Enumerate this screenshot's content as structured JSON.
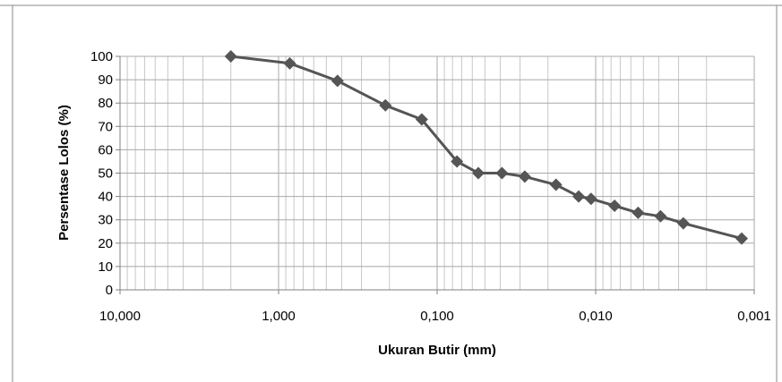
{
  "chart_data": {
    "type": "scatter",
    "title": "",
    "xlabel": "Ukuran Butir (mm)",
    "ylabel": "Persentase Lolos (%)",
    "x_scale": "log",
    "x_reversed": true,
    "xlim": [
      10,
      0.001
    ],
    "ylim": [
      0,
      100
    ],
    "grid": true,
    "legend": "none",
    "x_ticks": [
      {
        "value": 10,
        "label": "10,000"
      },
      {
        "value": 1,
        "label": "1,000"
      },
      {
        "value": 0.1,
        "label": "0,100"
      },
      {
        "value": 0.01,
        "label": "0,010"
      },
      {
        "value": 0.001,
        "label": "0,001"
      }
    ],
    "y_ticks": [
      0,
      10,
      20,
      30,
      40,
      50,
      60,
      70,
      80,
      90,
      100
    ],
    "series": [
      {
        "color": "#555555",
        "marker": "diamond",
        "points": [
          {
            "x": 2.0,
            "y": 100
          },
          {
            "x": 0.85,
            "y": 97
          },
          {
            "x": 0.425,
            "y": 89.5
          },
          {
            "x": 0.212,
            "y": 79
          },
          {
            "x": 0.125,
            "y": 73
          },
          {
            "x": 0.075,
            "y": 55
          },
          {
            "x": 0.055,
            "y": 50
          },
          {
            "x": 0.039,
            "y": 50
          },
          {
            "x": 0.028,
            "y": 48.5
          },
          {
            "x": 0.0178,
            "y": 45
          },
          {
            "x": 0.0128,
            "y": 40
          },
          {
            "x": 0.0107,
            "y": 39
          },
          {
            "x": 0.0076,
            "y": 36
          },
          {
            "x": 0.0054,
            "y": 33
          },
          {
            "x": 0.0039,
            "y": 31.5
          },
          {
            "x": 0.0028,
            "y": 28.5
          },
          {
            "x": 0.0012,
            "y": 22
          }
        ]
      }
    ]
  }
}
